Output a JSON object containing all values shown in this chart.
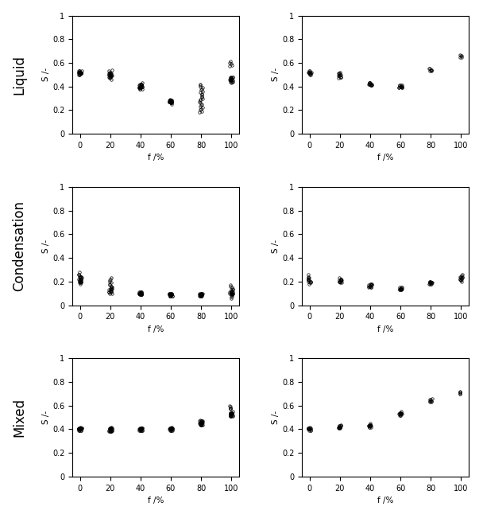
{
  "row_labels": [
    "Liquid",
    "Condensation",
    "Mixed"
  ],
  "xlabel": "f /%",
  "ylabel": "S /-",
  "xlim": [
    -5,
    105
  ],
  "ylim": [
    0,
    1
  ],
  "xticks": [
    0,
    20,
    40,
    60,
    80,
    100
  ],
  "yticks": [
    0,
    0.2,
    0.4,
    0.6,
    0.8,
    1.0
  ],
  "ytick_labels": [
    "0",
    "0.2",
    "0.4",
    "0.6",
    "0.8",
    "1"
  ],
  "background": "#ffffff",
  "data": {
    "liquid_left": {
      "f0": [
        0.5,
        0.51,
        0.52,
        0.51,
        0.52,
        0.53,
        0.5,
        0.51,
        0.52,
        0.51,
        0.52,
        0.53,
        0.51,
        0.52,
        0.51,
        0.52,
        0.53,
        0.51,
        0.52,
        0.53,
        0.52,
        0.51,
        0.5,
        0.52,
        0.51
      ],
      "f20": [
        0.46,
        0.47,
        0.48,
        0.49,
        0.5,
        0.51,
        0.52,
        0.53,
        0.54,
        0.49,
        0.5,
        0.51,
        0.48,
        0.49,
        0.5,
        0.51,
        0.49,
        0.5,
        0.51,
        0.48,
        0.49,
        0.5,
        0.51,
        0.48,
        0.49
      ],
      "f40": [
        0.38,
        0.39,
        0.4,
        0.41,
        0.42,
        0.43,
        0.39,
        0.4,
        0.41,
        0.42,
        0.39,
        0.4,
        0.41,
        0.38,
        0.39,
        0.4,
        0.41,
        0.42,
        0.39,
        0.4,
        0.41,
        0.38,
        0.39,
        0.4,
        0.42
      ],
      "f60": [
        0.25,
        0.26,
        0.27,
        0.28,
        0.29,
        0.27,
        0.26,
        0.28,
        0.27,
        0.28,
        0.27,
        0.26,
        0.27,
        0.28,
        0.27,
        0.27,
        0.28,
        0.27,
        0.26,
        0.27,
        0.28,
        0.27,
        0.26,
        0.27,
        0.28
      ],
      "f80": [
        0.18,
        0.19,
        0.2,
        0.21,
        0.22,
        0.23,
        0.24,
        0.25,
        0.26,
        0.27,
        0.28,
        0.29,
        0.3,
        0.31,
        0.32,
        0.33,
        0.34,
        0.35,
        0.36,
        0.37,
        0.38,
        0.39,
        0.4,
        0.41,
        0.42
      ],
      "f100": [
        0.43,
        0.44,
        0.45,
        0.46,
        0.47,
        0.48,
        0.45,
        0.46,
        0.47,
        0.48,
        0.44,
        0.45,
        0.46,
        0.47,
        0.48,
        0.44,
        0.45,
        0.46,
        0.47,
        0.48,
        0.57,
        0.58,
        0.59,
        0.6,
        0.61
      ]
    },
    "liquid_right": {
      "f0": [
        0.5,
        0.51,
        0.52,
        0.51,
        0.52,
        0.53,
        0.5,
        0.51,
        0.52,
        0.51,
        0.52,
        0.53,
        0.51,
        0.52
      ],
      "f20": [
        0.47,
        0.48,
        0.49,
        0.5,
        0.51,
        0.52,
        0.48,
        0.49,
        0.5,
        0.51,
        0.48,
        0.49,
        0.5,
        0.51
      ],
      "f40": [
        0.41,
        0.42,
        0.43,
        0.43,
        0.42,
        0.41,
        0.42,
        0.41,
        0.42,
        0.43,
        0.42,
        0.43,
        0.42,
        0.41
      ],
      "f60": [
        0.39,
        0.4,
        0.41,
        0.41,
        0.4,
        0.39,
        0.4,
        0.41,
        0.4,
        0.39,
        0.4,
        0.41,
        0.4,
        0.39
      ],
      "f80": [
        0.53,
        0.54,
        0.55,
        0.55,
        0.54,
        0.53,
        0.54
      ],
      "f100": [
        0.65,
        0.66,
        0.67,
        0.66,
        0.65
      ]
    },
    "cond_left": {
      "f0": [
        0.18,
        0.2,
        0.22,
        0.24,
        0.26,
        0.28,
        0.19,
        0.21,
        0.23,
        0.25,
        0.2,
        0.22,
        0.24,
        0.19,
        0.21,
        0.23,
        0.2,
        0.22,
        0.24,
        0.26,
        0.2,
        0.22,
        0.24,
        0.19,
        0.21
      ],
      "f20": [
        0.1,
        0.11,
        0.12,
        0.13,
        0.14,
        0.15,
        0.16,
        0.17,
        0.18,
        0.19,
        0.2,
        0.21,
        0.22,
        0.23,
        0.11,
        0.12,
        0.13,
        0.14,
        0.1,
        0.11,
        0.12,
        0.13,
        0.14,
        0.15,
        0.16
      ],
      "f40": [
        0.09,
        0.1,
        0.11,
        0.1,
        0.09,
        0.1,
        0.11,
        0.1,
        0.09,
        0.1,
        0.11,
        0.1,
        0.09,
        0.1,
        0.11,
        0.1,
        0.09,
        0.1,
        0.11,
        0.1,
        0.09,
        0.1,
        0.11,
        0.1,
        0.09
      ],
      "f60": [
        0.08,
        0.09,
        0.1,
        0.09,
        0.08,
        0.09,
        0.1,
        0.09,
        0.08,
        0.09,
        0.1,
        0.09,
        0.08,
        0.09,
        0.1,
        0.09,
        0.08,
        0.09,
        0.1,
        0.09,
        0.08,
        0.09,
        0.1,
        0.09,
        0.08
      ],
      "f80": [
        0.08,
        0.09,
        0.1,
        0.09,
        0.08,
        0.09,
        0.1,
        0.09,
        0.08,
        0.09,
        0.1,
        0.09,
        0.08,
        0.09,
        0.1,
        0.09,
        0.08,
        0.09,
        0.1,
        0.09,
        0.08,
        0.09,
        0.1,
        0.09,
        0.08
      ],
      "f100": [
        0.06,
        0.07,
        0.08,
        0.09,
        0.1,
        0.11,
        0.12,
        0.13,
        0.14,
        0.15,
        0.16,
        0.17,
        0.1,
        0.11,
        0.12,
        0.13,
        0.1,
        0.11,
        0.09,
        0.1,
        0.11,
        0.1,
        0.09,
        0.1,
        0.11
      ]
    },
    "cond_right": {
      "f0": [
        0.18,
        0.2,
        0.22,
        0.24,
        0.26,
        0.19,
        0.21,
        0.23,
        0.2,
        0.22,
        0.19,
        0.21,
        0.23,
        0.2
      ],
      "f20": [
        0.19,
        0.2,
        0.21,
        0.22,
        0.23,
        0.2,
        0.21,
        0.22,
        0.19,
        0.2,
        0.21,
        0.22,
        0.2,
        0.21
      ],
      "f40": [
        0.15,
        0.16,
        0.17,
        0.18,
        0.16,
        0.17,
        0.18,
        0.15,
        0.16,
        0.17,
        0.16,
        0.17,
        0.18,
        0.15
      ],
      "f60": [
        0.13,
        0.14,
        0.15,
        0.14,
        0.13,
        0.14,
        0.15,
        0.14,
        0.13,
        0.14,
        0.15,
        0.14,
        0.13,
        0.14
      ],
      "f80": [
        0.18,
        0.19,
        0.2,
        0.19,
        0.18,
        0.19,
        0.2,
        0.19,
        0.18,
        0.19,
        0.2,
        0.19,
        0.18,
        0.19
      ],
      "f100": [
        0.2,
        0.22,
        0.24,
        0.26,
        0.23,
        0.21,
        0.22,
        0.23,
        0.24,
        0.25,
        0.21,
        0.22,
        0.23,
        0.24
      ]
    },
    "mixed_left": {
      "f0": [
        0.39,
        0.4,
        0.41,
        0.42,
        0.4,
        0.41,
        0.4,
        0.39,
        0.4,
        0.41,
        0.4,
        0.41,
        0.4,
        0.39,
        0.4,
        0.41,
        0.4,
        0.39,
        0.4,
        0.41,
        0.4,
        0.39,
        0.4,
        0.41,
        0.4
      ],
      "f20": [
        0.38,
        0.39,
        0.4,
        0.41,
        0.42,
        0.39,
        0.4,
        0.41,
        0.38,
        0.39,
        0.4,
        0.41,
        0.38,
        0.39,
        0.4,
        0.41,
        0.38,
        0.39,
        0.4,
        0.41,
        0.38,
        0.39,
        0.4,
        0.41,
        0.38
      ],
      "f40": [
        0.39,
        0.4,
        0.41,
        0.4,
        0.39,
        0.4,
        0.41,
        0.4,
        0.39,
        0.4,
        0.41,
        0.4,
        0.39,
        0.4,
        0.41,
        0.4,
        0.39,
        0.4,
        0.41,
        0.4,
        0.39,
        0.4,
        0.41,
        0.4,
        0.39
      ],
      "f60": [
        0.39,
        0.4,
        0.41,
        0.42,
        0.4,
        0.41,
        0.4,
        0.39,
        0.4,
        0.41,
        0.4,
        0.41,
        0.4,
        0.39,
        0.4,
        0.41,
        0.4,
        0.39,
        0.4,
        0.41,
        0.4,
        0.39,
        0.4,
        0.41,
        0.4
      ],
      "f80": [
        0.44,
        0.45,
        0.46,
        0.47,
        0.48,
        0.45,
        0.46,
        0.47,
        0.44,
        0.45,
        0.46,
        0.47,
        0.44,
        0.45,
        0.46,
        0.47,
        0.44,
        0.45,
        0.46,
        0.47,
        0.44,
        0.45,
        0.46,
        0.47,
        0.44
      ],
      "f100": [
        0.51,
        0.52,
        0.53,
        0.54,
        0.55,
        0.52,
        0.53,
        0.54,
        0.51,
        0.52,
        0.53,
        0.54,
        0.51,
        0.52,
        0.53,
        0.54,
        0.51,
        0.52,
        0.53,
        0.54,
        0.58,
        0.59,
        0.6,
        0.57,
        0.58
      ]
    },
    "mixed_right": {
      "f0": [
        0.39,
        0.4,
        0.41,
        0.42,
        0.4,
        0.41,
        0.4,
        0.39,
        0.4,
        0.41,
        0.4,
        0.41,
        0.4,
        0.39
      ],
      "f20": [
        0.41,
        0.42,
        0.43,
        0.44,
        0.42,
        0.43,
        0.42,
        0.41,
        0.42,
        0.43,
        0.42,
        0.43,
        0.42,
        0.41
      ],
      "f40": [
        0.42,
        0.43,
        0.44,
        0.45,
        0.43,
        0.44,
        0.43,
        0.42,
        0.43,
        0.44,
        0.43,
        0.44,
        0.43,
        0.42
      ],
      "f60": [
        0.52,
        0.53,
        0.54,
        0.55,
        0.53,
        0.54,
        0.53,
        0.52,
        0.53,
        0.54,
        0.53,
        0.54,
        0.53,
        0.52
      ],
      "f80": [
        0.63,
        0.64,
        0.65,
        0.66,
        0.64,
        0.65,
        0.64,
        0.63
      ],
      "f100": [
        0.7,
        0.71,
        0.72,
        0.71,
        0.7
      ]
    }
  },
  "marker": "o",
  "markersize": 2.5,
  "markerfacecolor": "none",
  "markeredgecolor": "black",
  "markeredgewidth": 0.5,
  "row_label_fontsize": 12,
  "axis_label_fontsize": 7.5,
  "tick_fontsize": 7
}
